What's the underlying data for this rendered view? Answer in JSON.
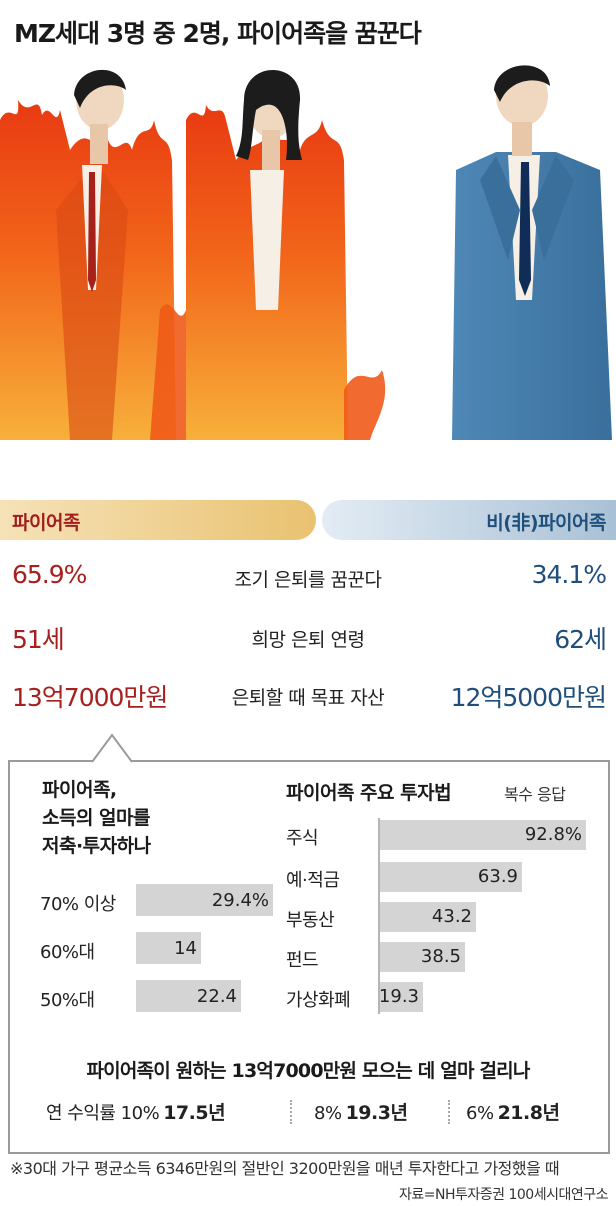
{
  "title": "MZ세대 3명 중 2명, 파이어족을 꿈꾼다",
  "groups": {
    "fire": "파이어족",
    "non_fire": "비(非)파이어족"
  },
  "comparison": [
    {
      "label": "조기 은퇴를 꿈꾼다",
      "fire": "65.9%",
      "non_fire": "34.1%"
    },
    {
      "label": "희망 은퇴 연령",
      "fire": "51세",
      "non_fire": "62세"
    },
    {
      "label": "은퇴할 때 목표 자산",
      "fire": "13억7000만원",
      "non_fire": "12억5000만원"
    }
  ],
  "chart_data": [
    {
      "type": "bar",
      "orientation": "horizontal",
      "title": "파이어족, 소득의 얼마를 저축·투자하나",
      "title_lines": [
        "파이어족,",
        "소득의 얼마를",
        "저축·투자하나"
      ],
      "categories": [
        "70% 이상",
        "60%대",
        "50%대"
      ],
      "values": [
        29.4,
        14,
        22.4
      ],
      "value_labels": [
        "29.4%",
        "14",
        "22.4"
      ]
    },
    {
      "type": "bar",
      "orientation": "horizontal",
      "title": "파이어족 주요 투자법",
      "subtitle": "복수 응답",
      "categories": [
        "주식",
        "예·적금",
        "부동산",
        "펀드",
        "가상화폐"
      ],
      "values": [
        92.8,
        63.9,
        43.2,
        38.5,
        19.3
      ],
      "value_labels": [
        "92.8%",
        "63.9",
        "43.2",
        "38.5",
        "19.3"
      ]
    }
  ],
  "time_to_goal": {
    "title": "파이어족이 원하는 13억7000만원 모으는 데 얼마 걸리나",
    "items": [
      {
        "rate": "연 수익률 10%",
        "years": "17.5년"
      },
      {
        "rate": "8%",
        "years": "19.3년"
      },
      {
        "rate": "6%",
        "years": "21.8년"
      }
    ]
  },
  "footnote": "※30대 가구 평균소득 6346만원의 절반인 3200만원을 매년 투자한다고 가정했을 때",
  "source": "자료=NH투자증권 100세시대연구소",
  "colors": {
    "fire_red": "#a8201e",
    "non_fire_blue": "#1f4f7a",
    "bar_gray": "#d4d4d4"
  }
}
